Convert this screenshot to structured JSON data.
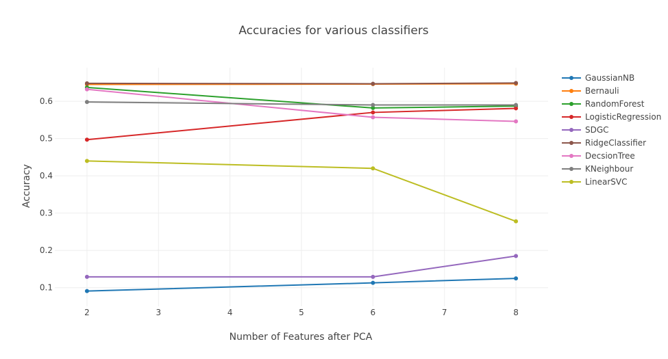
{
  "chart_data": {
    "type": "line",
    "title": "Accuracies for various classifiers",
    "xlabel": "Number of Features after PCA",
    "ylabel": "Accuracy",
    "x": [
      2,
      6,
      8
    ],
    "xlim": [
      1.55,
      8.45
    ],
    "ylim": [
      0.05,
      0.69
    ],
    "xticks": [
      2,
      3,
      4,
      5,
      6,
      7,
      8
    ],
    "yticks": [
      0.1,
      0.2,
      0.3,
      0.4,
      0.5,
      0.6
    ],
    "ytick_labels": [
      "0.1",
      "0.2",
      "0.3",
      "0.4",
      "0.5",
      "0.6"
    ],
    "grid": true,
    "legend_position": "right",
    "series": [
      {
        "name": "GaussianNB",
        "color": "#1f77b4",
        "values": [
          0.091,
          0.113,
          0.125
        ]
      },
      {
        "name": "Bernauli",
        "color": "#ff7f0e",
        "values": [
          0.645,
          0.646,
          0.647
        ]
      },
      {
        "name": "RandomForest",
        "color": "#2ca02c",
        "values": [
          0.637,
          0.582,
          0.587
        ]
      },
      {
        "name": "LogisticRegression",
        "color": "#d62728",
        "values": [
          0.497,
          0.57,
          0.581
        ]
      },
      {
        "name": "SDGC",
        "color": "#9467bd",
        "values": [
          0.129,
          0.129,
          0.185
        ]
      },
      {
        "name": "RidgeClassifier",
        "color": "#8c564b",
        "values": [
          0.648,
          0.647,
          0.649
        ]
      },
      {
        "name": "DecsionTree",
        "color": "#e377c2",
        "values": [
          0.632,
          0.557,
          0.546
        ]
      },
      {
        "name": "KNeighbour",
        "color": "#7f7f7f",
        "values": [
          0.598,
          0.59,
          0.59
        ]
      },
      {
        "name": "LinearSVC",
        "color": "#bcbd22",
        "values": [
          0.44,
          0.42,
          0.278
        ]
      }
    ]
  }
}
